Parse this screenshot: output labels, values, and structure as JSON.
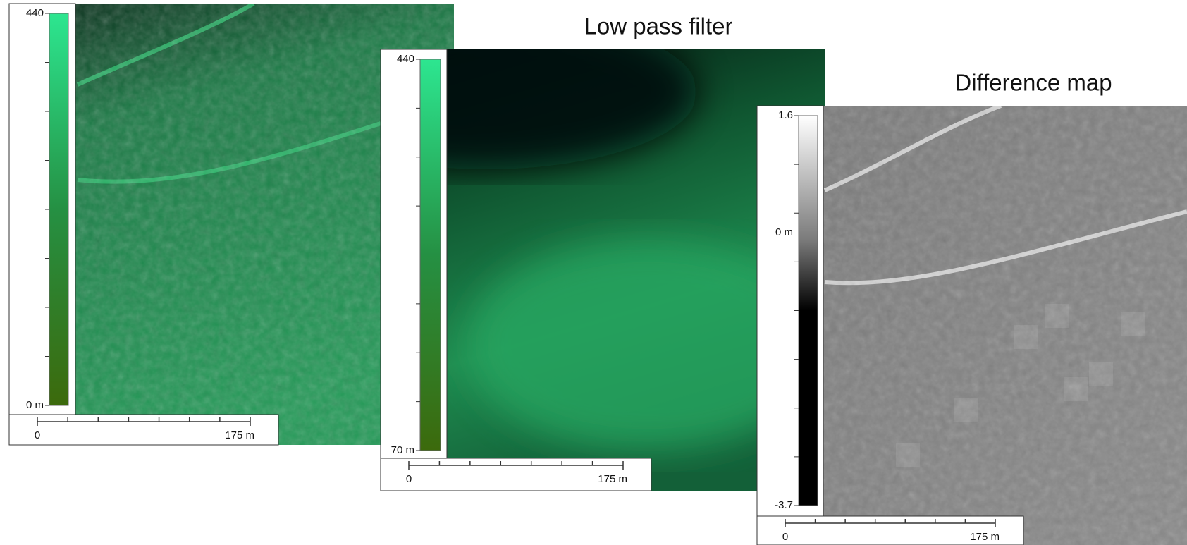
{
  "panels": [
    {
      "legend": {
        "labels": [
          "440",
          "0 m"
        ]
      },
      "scale_bar": {
        "labels": [
          "0",
          "175 m"
        ]
      }
    },
    {
      "title": "Low pass filter",
      "legend": {
        "labels": [
          "440",
          "70 m"
        ]
      },
      "scale_bar": {
        "labels": [
          "0",
          "175 m"
        ]
      }
    },
    {
      "title": "Difference map",
      "legend": {
        "labels": [
          "1.6",
          "0 m",
          "-3.7"
        ]
      },
      "scale_bar": {
        "labels": [
          "0",
          "175 m"
        ]
      }
    }
  ]
}
